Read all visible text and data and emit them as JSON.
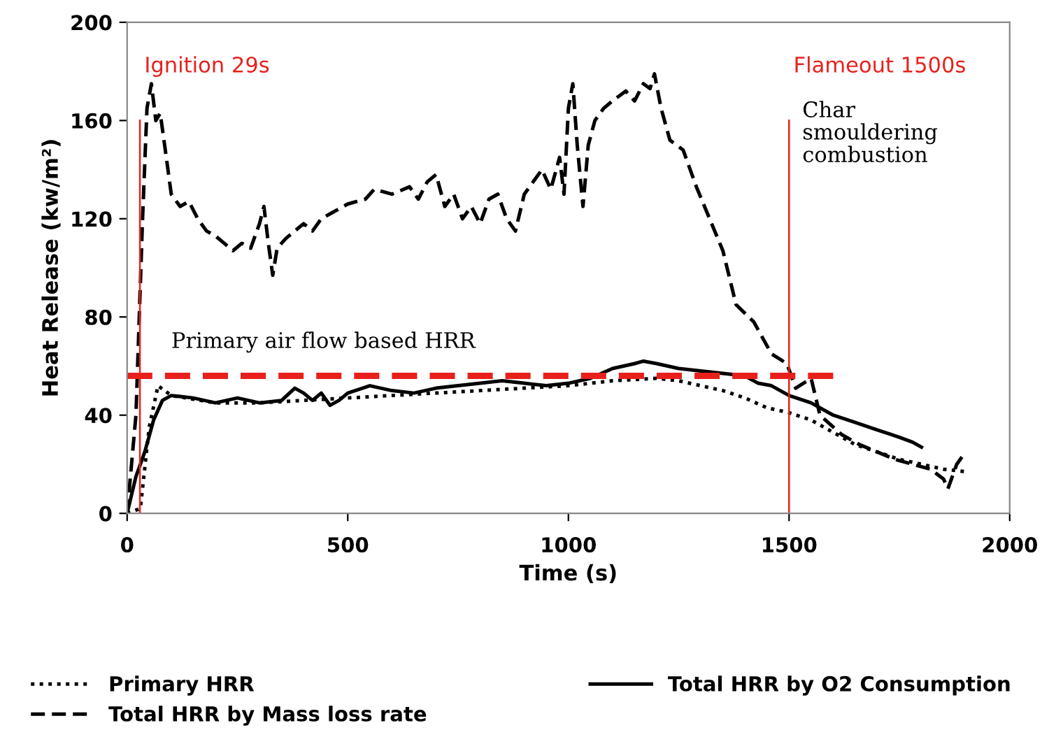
{
  "chart_data": {
    "type": "line",
    "xlabel": "Time (s)",
    "ylabel": "Heat Release (kw/m²)",
    "xlim": [
      0,
      2000
    ],
    "xticks": [
      0,
      500,
      1000,
      1500,
      2000
    ],
    "ylim": [
      0,
      200
    ],
    "yticks": [
      0,
      40,
      80,
      120,
      160,
      200
    ],
    "grid": false,
    "legend": "bottom",
    "marker": "none",
    "series": [
      {
        "name": "Primary HRR",
        "color": "#000000",
        "line_style": "dotted",
        "x": [
          0,
          30,
          50,
          70,
          100,
          200,
          300,
          400,
          500,
          600,
          700,
          800,
          900,
          1000,
          1100,
          1200,
          1250,
          1300,
          1350,
          1400,
          1450,
          1500,
          1550,
          1600,
          1650,
          1700,
          1750,
          1800,
          1850,
          1900
        ],
        "values": [
          0,
          2,
          35,
          52,
          48,
          45,
          45,
          46,
          47,
          48,
          49,
          50,
          51,
          52,
          54,
          55,
          54,
          52,
          50,
          47,
          43,
          41,
          38,
          33,
          28,
          25,
          22,
          20,
          18,
          17
        ]
      },
      {
        "name": "Total HRR by Mass loss rate",
        "color": "#000000",
        "line_style": "dashed",
        "x": [
          0,
          20,
          35,
          45,
          55,
          65,
          75,
          85,
          100,
          120,
          140,
          160,
          180,
          200,
          220,
          240,
          260,
          280,
          300,
          310,
          320,
          330,
          340,
          360,
          380,
          400,
          420,
          440,
          460,
          500,
          540,
          560,
          600,
          640,
          660,
          680,
          700,
          720,
          740,
          760,
          780,
          800,
          820,
          840,
          860,
          880,
          900,
          920,
          940,
          960,
          980,
          990,
          1000,
          1010,
          1020,
          1033,
          1045,
          1060,
          1080,
          1100,
          1130,
          1150,
          1170,
          1185,
          1195,
          1210,
          1230,
          1260,
          1290,
          1320,
          1350,
          1380,
          1420,
          1460,
          1495,
          1515,
          1550,
          1570,
          1620,
          1660,
          1700,
          1740,
          1780,
          1820,
          1850,
          1860,
          1880,
          1900
        ],
        "values": [
          0,
          40,
          120,
          165,
          175,
          160,
          163,
          150,
          130,
          125,
          127,
          120,
          115,
          113,
          110,
          107,
          110,
          108,
          118,
          125,
          110,
          97,
          108,
          112,
          115,
          118,
          115,
          120,
          122,
          126,
          128,
          132,
          130,
          133,
          128,
          135,
          138,
          125,
          130,
          120,
          125,
          118,
          128,
          130,
          120,
          115,
          130,
          135,
          140,
          132,
          145,
          130,
          165,
          175,
          150,
          125,
          150,
          160,
          165,
          168,
          172,
          168,
          175,
          173,
          179,
          165,
          152,
          148,
          133,
          120,
          107,
          85,
          78,
          65,
          61,
          51,
          55,
          40,
          32,
          28,
          25,
          22,
          20,
          18,
          14,
          10,
          20,
          25
        ]
      },
      {
        "name": "Total HRR by O2 Consumption",
        "color": "#000000",
        "line_style": "solid",
        "x": [
          0,
          20,
          40,
          60,
          80,
          100,
          150,
          200,
          250,
          300,
          350,
          380,
          400,
          420,
          440,
          460,
          480,
          500,
          550,
          600,
          650,
          700,
          750,
          800,
          850,
          900,
          950,
          1000,
          1050,
          1100,
          1150,
          1170,
          1200,
          1250,
          1300,
          1350,
          1400,
          1430,
          1460,
          1500,
          1550,
          1600,
          1650,
          1700,
          1750,
          1780,
          1800
        ],
        "values": [
          0,
          15,
          25,
          38,
          46,
          48,
          47,
          45,
          47,
          45,
          46,
          51,
          49,
          46,
          49,
          44,
          46,
          49,
          52,
          50,
          49,
          51,
          52,
          53,
          54,
          53,
          52,
          53,
          55,
          59,
          61,
          62,
          61,
          59,
          58,
          57,
          56,
          53,
          52,
          48,
          45,
          40,
          37,
          34,
          31,
          29,
          27
        ]
      },
      {
        "color": "#e8201c",
        "line_style": "dashed",
        "x": [
          0,
          1600
        ],
        "values": [
          56,
          56
        ]
      }
    ],
    "ref_lines": [
      {
        "axis": "x",
        "value": 29,
        "label": "Ignition 29s",
        "color": "#e8201c"
      },
      {
        "axis": "x",
        "value": 1500,
        "label": "Flameout 1500s",
        "color": "#e8201c"
      }
    ],
    "annotations": [
      "Primary air flow based HRR",
      "Char smouldering combustion"
    ]
  }
}
